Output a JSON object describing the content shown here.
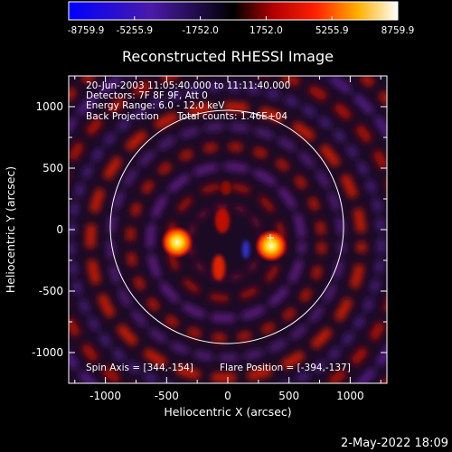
{
  "colorbar": {
    "ticks": [
      "-8759.9",
      "-5255.9",
      "-1752.0",
      "1752.0",
      "5255.9",
      "8759.9"
    ]
  },
  "title": "Reconstructed RHESSI Image",
  "info": {
    "line1": "20-Jun-2003 11:05:40.000 to 11:11:40.000",
    "line2": "Detectors: 7F 8F 9F, Att 0",
    "line3": "Energy Range: 6.0 - 12.0 keV",
    "line4_left": "Back Projection",
    "line4_right": "Total counts: 1.46E+04"
  },
  "footer_info": {
    "spin_axis": "Spin Axis = [344,-154]",
    "flare_position": "Flare Position = [-394,-137]"
  },
  "axes": {
    "xlabel": "Heliocentric X (arcsec)",
    "ylabel": "Heliocentric Y (arcsec)",
    "xticks": [
      "-1000",
      "-500",
      "0",
      "500",
      "1000"
    ],
    "yticks": [
      "1000",
      "500",
      "0",
      "-500",
      "-1000"
    ],
    "xrange": [
      -1300,
      1300
    ],
    "yrange": [
      -1250,
      1250
    ]
  },
  "timestamp": "2-May-2022 18:09",
  "colors": {
    "background": "#000000",
    "axes": "#ffffff",
    "limb_circle": "#ffffff",
    "cmap_low": "#0000ff",
    "cmap_mid": "#000000",
    "cmap_high": "#ffffff"
  }
}
